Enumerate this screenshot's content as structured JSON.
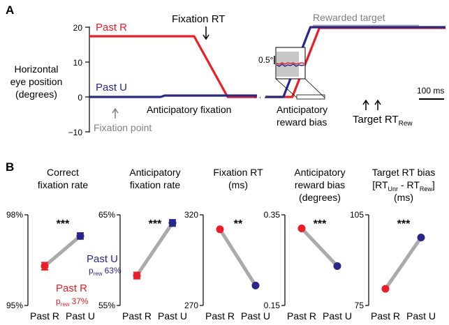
{
  "colors": {
    "past_r": "#ee1c25",
    "past_u": "#28288c",
    "gray": "#aaaaaa",
    "dark_gray": "#808080"
  },
  "figure": {
    "panel_a_letter": "A",
    "panel_b_letter": "B"
  },
  "chart_data": [
    {
      "type": "line",
      "panel": "A",
      "ylabel_lines": [
        "Horizontal",
        "eye position",
        "(degrees)"
      ],
      "y_ticks": [
        "20",
        "10",
        "0",
        "−10"
      ],
      "ylim": [
        -10,
        20
      ],
      "series": [
        {
          "name": "Past R",
          "segments": [
            {
              "x": [
                0,
                25,
                33,
                40
              ],
              "y": [
                17.4,
                17.4,
                0,
                0
              ]
            },
            {
              "x": [
                60,
                66,
                72,
                100
              ],
              "y": [
                0,
                0,
                19.8,
                19.8
              ]
            }
          ]
        },
        {
          "name": "Past U",
          "segments": [
            {
              "x": [
                0,
                17,
                18,
                40
              ],
              "y": [
                0,
                0,
                0.4,
                0.4
              ]
            },
            {
              "x": [
                60,
                64,
                70,
                100
              ],
              "y": [
                0,
                0,
                20,
                20
              ]
            }
          ]
        }
      ],
      "annotations": {
        "fixation_rt": "Fixation RT",
        "anticipatory_fixation": "Anticipatory fixation",
        "fixation_point": "Fixation point",
        "rewarded_target": "Rewarded target",
        "anticipatory_reward_bias_lines": [
          "Anticipatory",
          "reward bias"
        ],
        "target_rt_main": "Target RT",
        "target_rt_sub": "Rew",
        "inset_scale": "0.5°",
        "time_scale": "100 ms",
        "ellipsis": "· · ·"
      }
    },
    {
      "type": "line",
      "panel": "B",
      "title_lines": [
        "Correct",
        "fixation rate"
      ],
      "categories": [
        "Past R",
        "Past U"
      ],
      "values": [
        96.3,
        97.3
      ],
      "errors": [
        0.12,
        0.1
      ],
      "ylim": [
        95,
        98
      ],
      "y_ticks": [
        "98%",
        "95%"
      ],
      "significance": "***",
      "legend": {
        "past_u": "Past U",
        "past_u_p": "p",
        "past_u_p_sub": "rew",
        "past_u_pct": "63%",
        "past_r": "Past R",
        "past_r_p": "p",
        "past_r_p_sub": "rew",
        "past_r_pct": "37%"
      }
    },
    {
      "type": "line",
      "panel": "B",
      "title_lines": [
        "Anticipatory",
        "fixation rate"
      ],
      "categories": [
        "Past R",
        "Past U"
      ],
      "values": [
        58.3,
        64.1
      ],
      "errors": [
        0.35,
        0.35
      ],
      "ylim": [
        55,
        65
      ],
      "y_ticks": [
        "65%",
        "55%"
      ],
      "significance": "***"
    },
    {
      "type": "line",
      "panel": "B",
      "title_lines": [
        "Fixation RT",
        "(ms)"
      ],
      "categories": [
        "Past R",
        "Past U"
      ],
      "values": [
        312,
        281
      ],
      "errors": [
        0,
        0
      ],
      "ylim": [
        270,
        320
      ],
      "y_ticks": [
        "320",
        "270"
      ],
      "significance": "**"
    },
    {
      "type": "line",
      "panel": "B",
      "title_lines": [
        "Anticipatory",
        "reward bias",
        "(degrees)"
      ],
      "categories": [
        "Past R",
        "Past U"
      ],
      "values": [
        0.32,
        0.237
      ],
      "errors": [
        0,
        0
      ],
      "ylim": [
        0.15,
        0.35
      ],
      "y_ticks": [
        "0.35",
        "0.15"
      ],
      "significance": "***"
    },
    {
      "type": "line",
      "panel": "B",
      "title_lines": [
        "Target RT bias",
        "[RT",
        "Unr",
        " - RT",
        "Rew",
        "]",
        "(ms)"
      ],
      "categories": [
        "Past R",
        "Past U"
      ],
      "values": [
        80.5,
        97.5
      ],
      "errors": [
        0,
        0
      ],
      "ylim": [
        75,
        105
      ],
      "y_ticks": [
        "105",
        "75"
      ],
      "significance": "***"
    }
  ]
}
